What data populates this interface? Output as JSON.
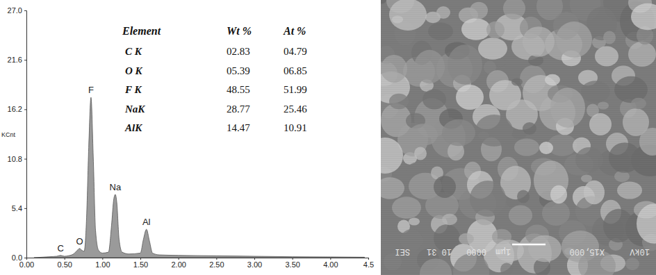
{
  "chart_data": {
    "type": "area",
    "y_label": "KCnt",
    "color": "#9a9a9a",
    "x": [
      0.1,
      0.3,
      0.4,
      0.45,
      0.5,
      0.55,
      0.62,
      0.67,
      0.7,
      0.73,
      0.76,
      0.79,
      0.82,
      0.85,
      0.88,
      0.91,
      0.95,
      1.0,
      1.08,
      1.12,
      1.15,
      1.17,
      1.19,
      1.22,
      1.26,
      1.35,
      1.5,
      1.54,
      1.58,
      1.62,
      1.66,
      1.75,
      2.0,
      2.5,
      3.0,
      3.5,
      4.0,
      4.45
    ],
    "values": [
      0.0,
      0.1,
      0.15,
      0.25,
      0.15,
      0.2,
      0.4,
      0.8,
      1.0,
      0.8,
      0.7,
      4.0,
      12.0,
      17.5,
      11.0,
      3.0,
      0.8,
      0.5,
      0.6,
      3.5,
      6.4,
      6.9,
      6.0,
      2.0,
      0.6,
      0.4,
      0.5,
      2.0,
      3.1,
      1.8,
      0.5,
      0.3,
      0.25,
      0.2,
      0.15,
      0.1,
      0.08,
      0.05
    ],
    "xlim": [
      0,
      4.5
    ],
    "xticks": [
      {
        "value": 0,
        "label": "0.00"
      },
      {
        "value": 0.5,
        "label": "0.50"
      },
      {
        "value": 1,
        "label": "1.00"
      },
      {
        "value": 1.5,
        "label": "1.50"
      },
      {
        "value": 2,
        "label": "2.00"
      },
      {
        "value": 2.5,
        "label": "2.50"
      },
      {
        "value": 3,
        "label": "3.00"
      },
      {
        "value": 3.5,
        "label": "3.50"
      },
      {
        "value": 4,
        "label": "4.00"
      },
      {
        "value": 4.5,
        "label": "4.5"
      }
    ],
    "ylim": [
      0,
      27
    ],
    "yticks": [
      {
        "value": 0,
        "label": "0.0"
      },
      5.4,
      10.8,
      16.2,
      21.6,
      {
        "value": 27,
        "label": "27.0"
      }
    ],
    "grid": false,
    "annotations": [
      {
        "text": "C",
        "x": 0.45,
        "y": 0.25
      },
      {
        "text": "O",
        "x": 0.7,
        "y": 1.0
      },
      {
        "text": "F",
        "x": 0.85,
        "y": 17.5
      },
      {
        "text": "Na",
        "x": 1.17,
        "y": 6.9
      },
      {
        "text": "Al",
        "x": 1.58,
        "y": 3.1
      }
    ]
  },
  "table": {
    "columns": [
      "Element",
      "Wt %",
      "At %"
    ],
    "rows": [
      [
        "C K",
        "02.83",
        "04.79"
      ],
      [
        "O K",
        "05.39",
        "06.85"
      ],
      [
        "F K",
        "48.55",
        "51.99"
      ],
      [
        "NaK",
        "28.77",
        "25.46"
      ],
      [
        "AlK",
        "14.47",
        "10.91"
      ]
    ]
  },
  "sem_image": {
    "labels": [
      "10kV",
      "X15,000",
      "1μm",
      "0000",
      "10 31",
      "SEI"
    ]
  }
}
